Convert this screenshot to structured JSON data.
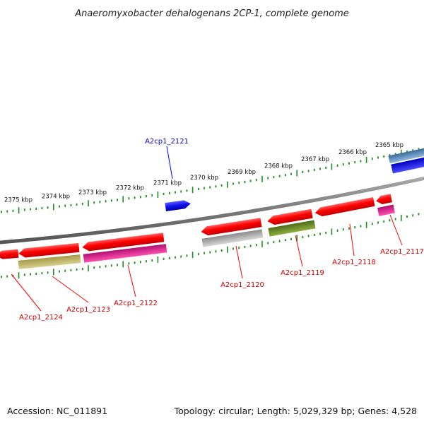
{
  "title": "Anaeromyxobacter dehalogenans 2CP-1, complete genome",
  "footer": {
    "accession": "Accession: NC_011891",
    "summary": "Topology: circular; Length: 5,029,329 bp; Genes: 4,528"
  },
  "ruler": {
    "tick_labels": [
      "2375 kbp",
      "2374 kbp",
      "2373 kbp",
      "2372 kbp",
      "2371 kbp",
      "2370 kbp",
      "2369 kbp",
      "2368 kbp",
      "2367 kbp",
      "2366 kbp",
      "2365 kbp"
    ],
    "color": "#228B22"
  },
  "genes": [
    {
      "name": "A2cp1_2121",
      "strand": "forward",
      "color": "#1a1aff"
    },
    {
      "name": "A2cp1_2124",
      "strand": "reverse",
      "color": "#ff0000"
    },
    {
      "name": "A2cp1_2123",
      "strand": "reverse",
      "color": "#ff0000"
    },
    {
      "name": "A2cp1_2122",
      "strand": "reverse",
      "color": "#ff0000"
    },
    {
      "name": "A2cp1_2120",
      "strand": "reverse",
      "color": "#ff0000"
    },
    {
      "name": "A2cp1_2119",
      "strand": "reverse",
      "color": "#ff0000"
    },
    {
      "name": "A2cp1_2118",
      "strand": "reverse",
      "color": "#ff0000"
    },
    {
      "name": "A2cp1_2117",
      "strand": "reverse",
      "color": "#ff0000"
    }
  ],
  "colors": {
    "backbone": "#888888",
    "forward_gene": "#1a1aff",
    "reverse_gene": "#ff0000",
    "cog_olive": "#b5ad5a",
    "cog_magenta": "#e0198a",
    "cog_gray": "#b0b0b0",
    "cog_green": "#6b8e23",
    "cog_steel": "#4682b4",
    "cog_blue": "#0000ee",
    "forward_label": "#0000cc",
    "reverse_label": "#cc0000"
  }
}
